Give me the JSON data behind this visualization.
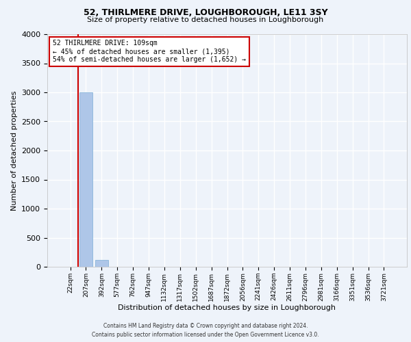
{
  "title": "52, THIRLMERE DRIVE, LOUGHBOROUGH, LE11 3SY",
  "subtitle": "Size of property relative to detached houses in Loughborough",
  "xlabel": "Distribution of detached houses by size in Loughborough",
  "ylabel": "Number of detached properties",
  "bin_labels": [
    "22sqm",
    "207sqm",
    "392sqm",
    "577sqm",
    "762sqm",
    "947sqm",
    "1132sqm",
    "1317sqm",
    "1502sqm",
    "1687sqm",
    "1872sqm",
    "2056sqm",
    "2241sqm",
    "2426sqm",
    "2611sqm",
    "2796sqm",
    "2981sqm",
    "3166sqm",
    "3351sqm",
    "3536sqm",
    "3721sqm"
  ],
  "bar_heights": [
    3,
    2995,
    115,
    2,
    1,
    0,
    0,
    0,
    0,
    0,
    0,
    0,
    0,
    0,
    0,
    0,
    0,
    0,
    0,
    0,
    0
  ],
  "bar_color": "#aec6e8",
  "bar_edge_color": "#7aaed6",
  "ylim": [
    0,
    4000
  ],
  "yticks": [
    0,
    500,
    1000,
    1500,
    2000,
    2500,
    3000,
    3500,
    4000
  ],
  "property_label": "52 THIRLMERE DRIVE: 109sqm",
  "annotation_line1": "← 45% of detached houses are smaller (1,395)",
  "annotation_line2": "54% of semi-detached houses are larger (1,652) →",
  "vline_color": "#cc0000",
  "annotation_box_color": "#cc0000",
  "footer_line1": "Contains HM Land Registry data © Crown copyright and database right 2024.",
  "footer_line2": "Contains public sector information licensed under the Open Government Licence v3.0.",
  "background_color": "#eef3fa",
  "plot_bg_color": "#eef3fa",
  "grid_color": "#ffffff",
  "title_fontsize": 9,
  "subtitle_fontsize": 8,
  "xlabel_fontsize": 8,
  "ylabel_fontsize": 8,
  "xtick_fontsize": 6.5,
  "ytick_fontsize": 8,
  "annotation_fontsize": 7,
  "footer_fontsize": 5.5
}
